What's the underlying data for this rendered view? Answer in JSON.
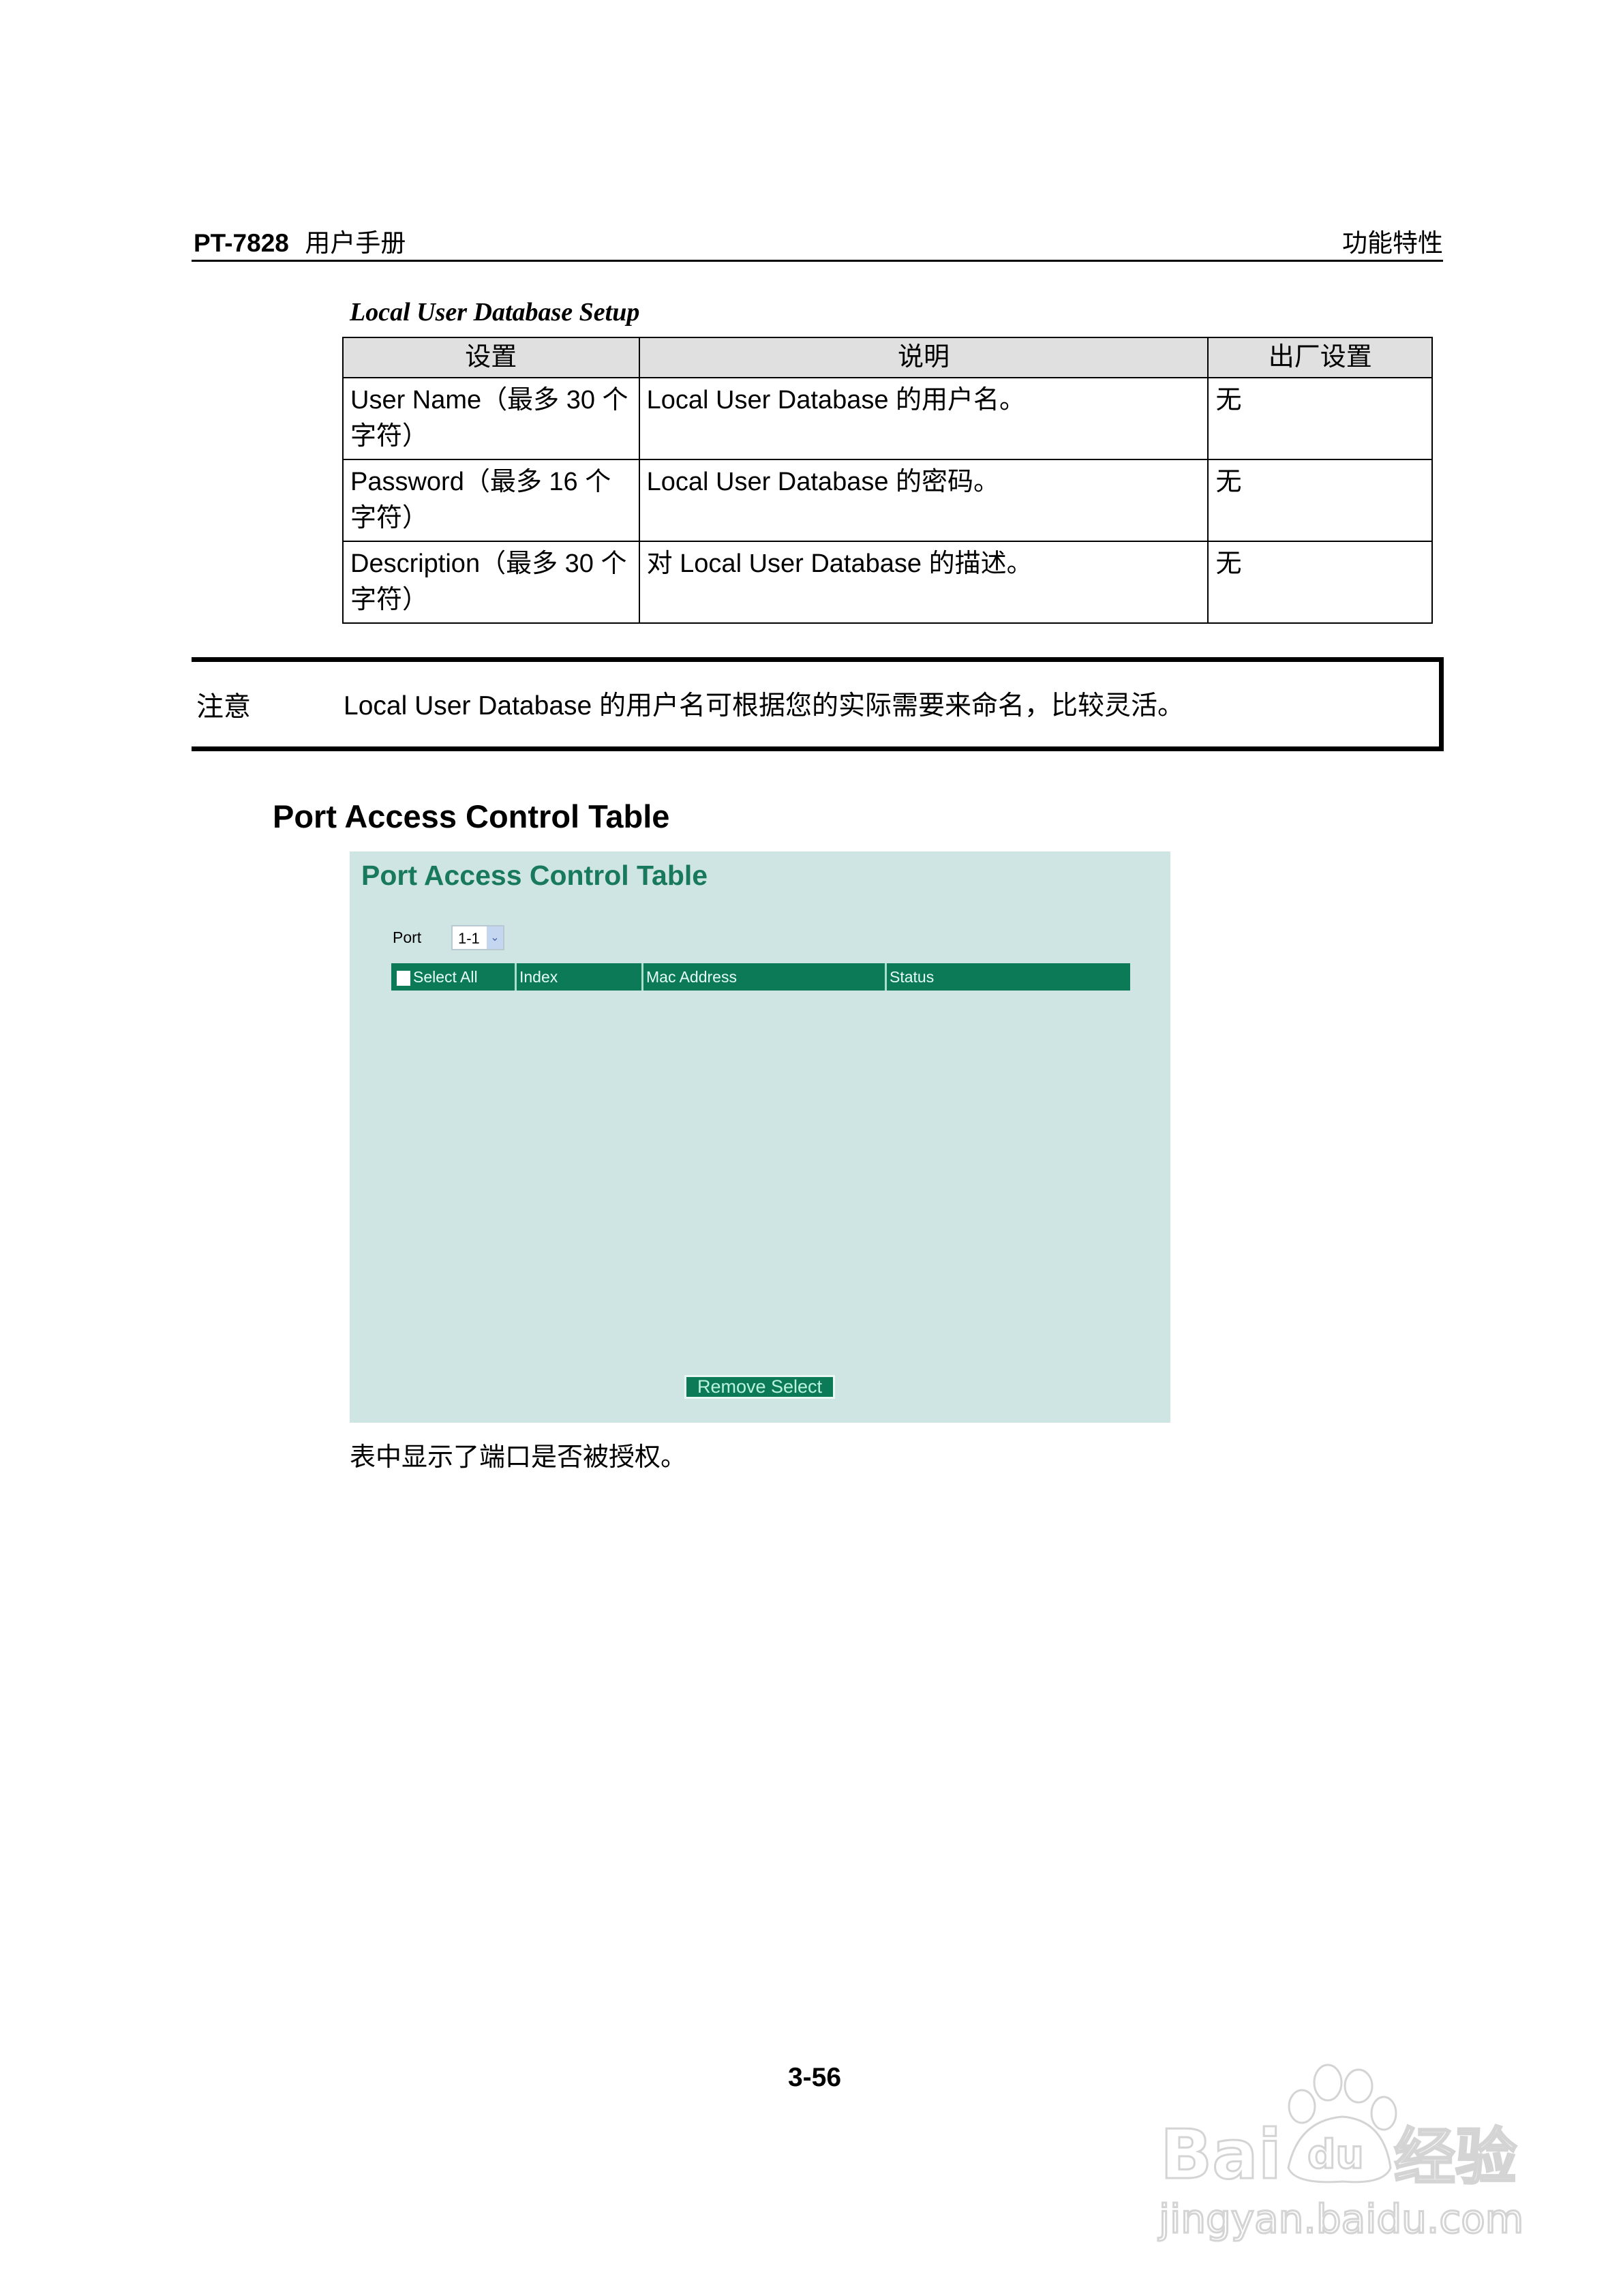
{
  "header": {
    "model": "PT-7828",
    "manual": "用户手册",
    "section": "功能特性"
  },
  "subtitle": "Local User Database Setup",
  "spec_table": {
    "columns": [
      "设置",
      "说明",
      "出厂设置"
    ],
    "rows": [
      {
        "setting": "User Name（最多 30 个字符）",
        "description": "Local User Database 的用户名。",
        "default": "无"
      },
      {
        "setting": "Password（最多 16 个字符）",
        "description": "Local User Database 的密码。",
        "default": "无"
      },
      {
        "setting": "Description（最多 30 个字符）",
        "description": "对 Local User Database 的描述。",
        "default": "无"
      }
    ]
  },
  "note": {
    "label": "注意",
    "text": "Local User Database 的用户名可根据您的实际需要来命名，比较灵活。"
  },
  "section_heading": "Port Access Control Table",
  "screenshot": {
    "title": "Port Access Control Table",
    "port_label": "Port",
    "port_value": "1-1",
    "columns": [
      "Select All",
      "Index",
      "Mac Address",
      "Status"
    ],
    "select_all_checked": false,
    "remove_button": "Remove Select",
    "colors": {
      "background": "#cfe5e3",
      "header": "#0d7a57",
      "title": "#18795c"
    }
  },
  "caption": "表中显示了端口是否被授权。",
  "page_number": "3-56",
  "watermark": {
    "logo": "Baidu经验",
    "url": "jingyan.baidu.com"
  }
}
